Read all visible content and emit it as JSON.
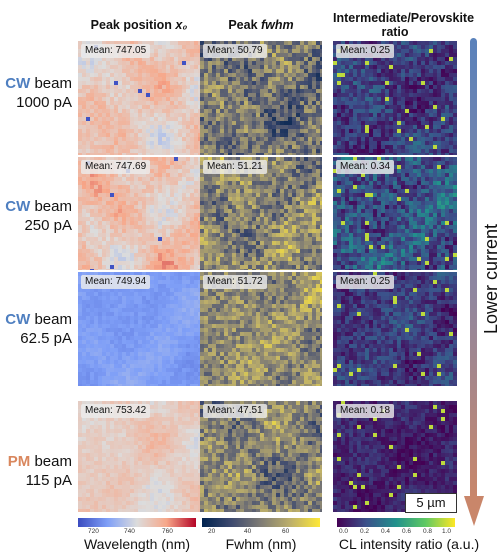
{
  "columns": [
    {
      "title_pre": "Peak position ",
      "title_em": "x₀",
      "cbar_label": "Wavelength (nm)",
      "ticks": [
        "720",
        "740",
        "760"
      ]
    },
    {
      "title_pre": "Peak ",
      "title_em": "fwhm",
      "cbar_label": "Fwhm (nm)",
      "ticks": [
        "20",
        "40",
        "60"
      ]
    },
    {
      "title_pre": "Intermediate/Perovskite ratio",
      "title_em": "",
      "cbar_label": "CL intensity ratio (a.u.)",
      "ticks": [
        "0.0",
        "0.2",
        "0.4",
        "0.6",
        "0.8",
        "1.0"
      ]
    }
  ],
  "rows": [
    {
      "mode": "CW",
      "line1_rest": " beam",
      "line2": "1000 pA",
      "means": [
        "Mean: 747.05",
        "Mean: 50.79",
        "Mean: 0.25"
      ]
    },
    {
      "mode": "CW",
      "line1_rest": " beam",
      "line2": "250 pA",
      "means": [
        "Mean: 747.69",
        "Mean: 51.21",
        "Mean: 0.34"
      ]
    },
    {
      "mode": "CW",
      "line1_rest": " beam",
      "line2": "62.5 pA",
      "means": [
        "Mean: 749.94",
        "Mean: 51.72",
        "Mean: 0.25"
      ]
    },
    {
      "mode": "PM",
      "line1_rest": " beam",
      "line2": "115 pA",
      "means": [
        "Mean: 753.42",
        "Mean: 47.51",
        "Mean: 0.18"
      ]
    }
  ],
  "arrow_label": "Lower current",
  "scalebar_label": "5 µm",
  "colors": {
    "cw_blue": "#4f7fc0",
    "pm_orange": "#d9875e",
    "arrow_top": "#5a82bb",
    "arrow_bottom": "#c9866a"
  },
  "colormaps": [
    "coolwarm",
    "cividis",
    "viridis"
  ]
}
